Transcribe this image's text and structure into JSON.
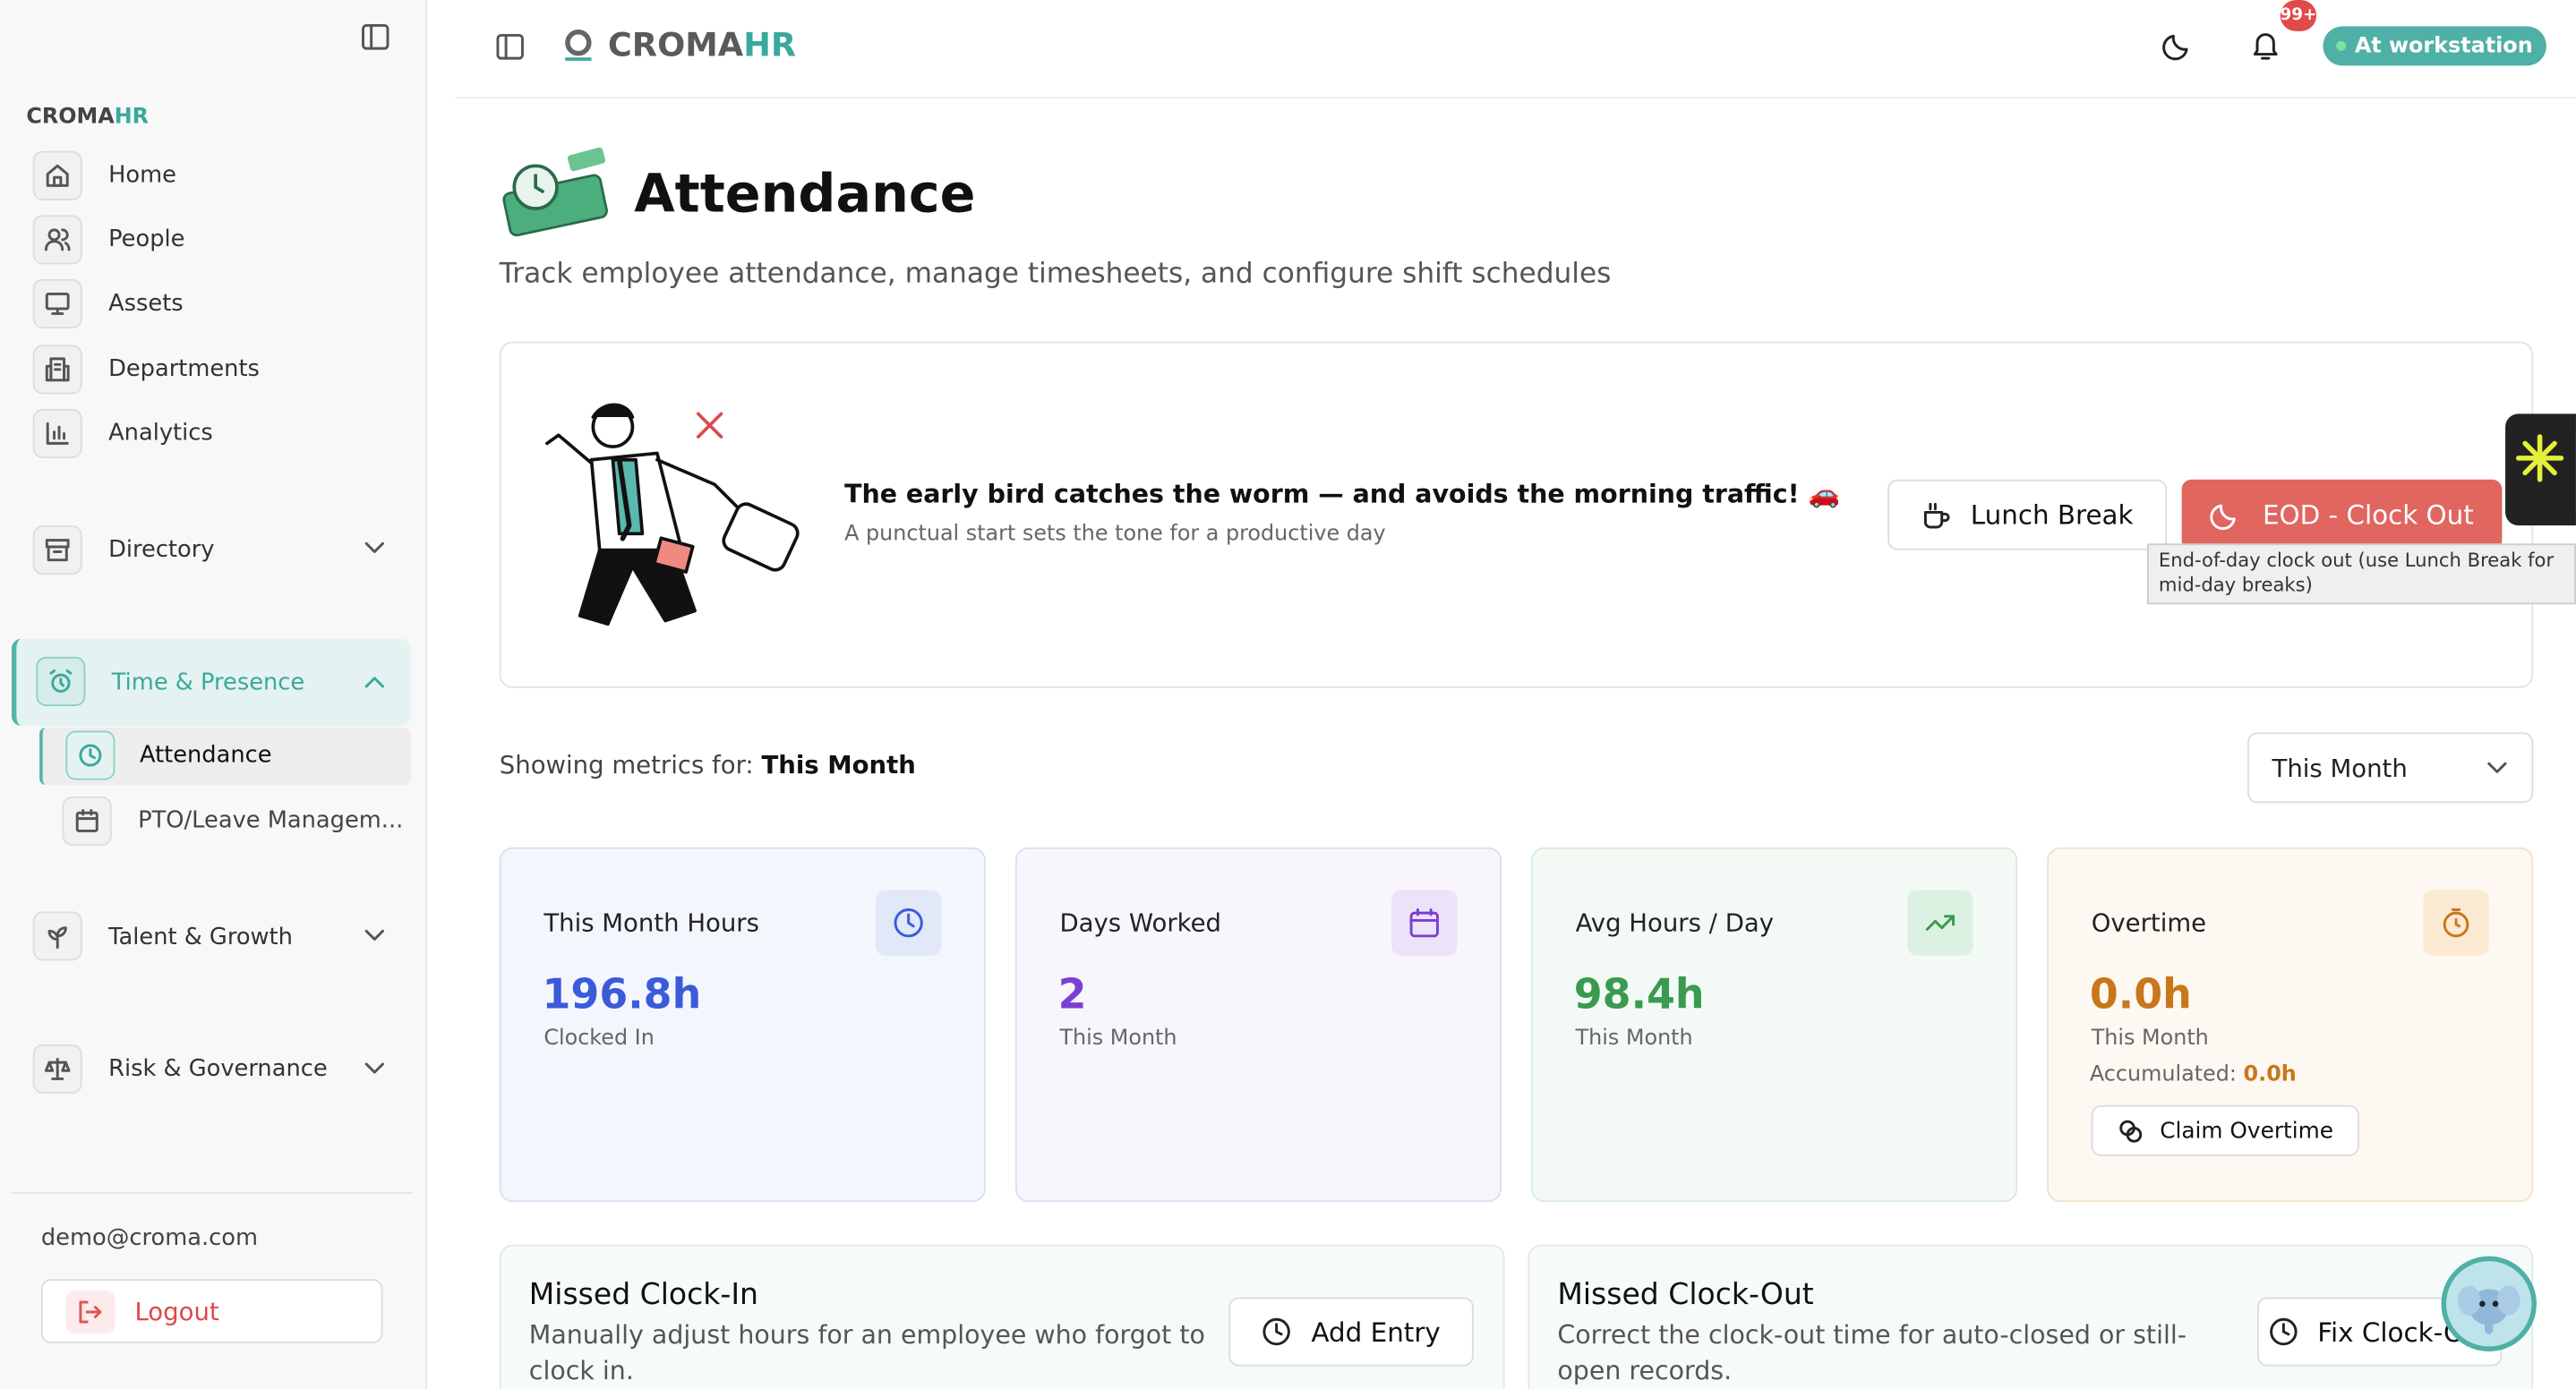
{
  "sidebar": {
    "brand": "CROMA",
    "brand_accent": "HR",
    "nav": [
      "Home",
      "People",
      "Assets",
      "Departments",
      "Analytics"
    ],
    "groups": [
      "Directory",
      "Time & Presence",
      "Talent & Growth",
      "Risk & Governance"
    ],
    "sub_items": [
      "Attendance",
      "PTO/Leave Managem..."
    ],
    "email": "demo@croma.com",
    "logout": "Logout"
  },
  "topbar": {
    "brand": "CROMA",
    "brand_accent": "HR",
    "badge": "99+",
    "status": "At workstation"
  },
  "header": {
    "title": "Attendance",
    "subtitle": "Track employee attendance, manage timesheets, and configure shift schedules"
  },
  "banner": {
    "quote": "The early bird catches the worm — and avoids the morning traffic! 🚗",
    "subtext": "A punctual start sets the tone for a productive day",
    "lunch": "Lunch Break",
    "clock_out": "EOD - Clock Out",
    "tooltip": "End-of-day clock out (use Lunch Break for mid-day breaks)"
  },
  "metrics_bar": {
    "label": "Showing metrics for:",
    "period": "This Month",
    "select": "This Month"
  },
  "metrics": [
    {
      "title": "This Month Hours",
      "value": "196.8h",
      "caption": "Clocked In"
    },
    {
      "title": "Days Worked",
      "value": "2",
      "caption": "This Month"
    },
    {
      "title": "Avg Hours / Day",
      "value": "98.4h",
      "caption": "This Month"
    },
    {
      "title": "Overtime",
      "value": "0.0h",
      "caption": "This Month"
    }
  ],
  "overtime": {
    "accumulated_label": "Accumulated:",
    "accumulated_value": "0.0h",
    "claim": "Claim Overtime"
  },
  "actions": [
    {
      "title": "Missed Clock-In",
      "description": "Manually adjust hours for an employee who forgot to clock in.",
      "button": "Add Entry"
    },
    {
      "title": "Missed Clock-Out",
      "description": "Correct the clock-out time for auto-closed or still-open records.",
      "button": "Fix Clock-Out"
    }
  ]
}
